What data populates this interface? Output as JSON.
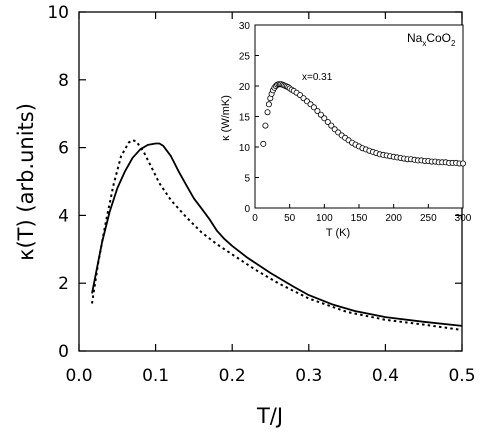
{
  "chart_data": [
    {
      "type": "line",
      "xlabel": "T/J",
      "ylabel": "κ(T) (arb.units)",
      "xlim": [
        0.0,
        0.5
      ],
      "ylim": [
        0,
        10
      ],
      "xticks": [
        0.0,
        0.1,
        0.2,
        0.3,
        0.4,
        0.5
      ],
      "xtick_labels": [
        "0.0",
        "0.1",
        "0.2",
        "0.3",
        "0.4",
        "0.5"
      ],
      "yticks": [
        0,
        2,
        4,
        6,
        8,
        10
      ],
      "ytick_labels": [
        "0",
        "2",
        "4",
        "6",
        "8",
        "10"
      ],
      "series": [
        {
          "style": "solid",
          "x": [
            0.017,
            0.03,
            0.04,
            0.05,
            0.06,
            0.07,
            0.08,
            0.09,
            0.1,
            0.105,
            0.11,
            0.12,
            0.13,
            0.14,
            0.15,
            0.16,
            0.17,
            0.18,
            0.19,
            0.2,
            0.22,
            0.25,
            0.28,
            0.3,
            0.33,
            0.36,
            0.4,
            0.45,
            0.5
          ],
          "y": [
            1.7,
            3.2,
            4.1,
            4.8,
            5.3,
            5.7,
            5.95,
            6.08,
            6.12,
            6.12,
            6.05,
            5.75,
            5.3,
            4.9,
            4.5,
            4.2,
            3.9,
            3.55,
            3.3,
            3.1,
            2.75,
            2.3,
            1.9,
            1.65,
            1.38,
            1.18,
            1.0,
            0.86,
            0.74
          ]
        },
        {
          "style": "dotted",
          "x": [
            0.017,
            0.025,
            0.035,
            0.045,
            0.055,
            0.065,
            0.07,
            0.075,
            0.085,
            0.095,
            0.105,
            0.12,
            0.14,
            0.16,
            0.18,
            0.2,
            0.23,
            0.26,
            0.3,
            0.35,
            0.4,
            0.45,
            0.5
          ],
          "y": [
            1.4,
            2.6,
            3.8,
            4.9,
            5.75,
            6.15,
            6.22,
            6.18,
            5.85,
            5.4,
            4.95,
            4.45,
            3.95,
            3.5,
            3.15,
            2.85,
            2.4,
            2.0,
            1.55,
            1.15,
            0.92,
            0.78,
            0.62
          ]
        }
      ]
    },
    {
      "type": "scatter",
      "xlabel": "T (K)",
      "ylabel": "κ (W/mK)",
      "xlim": [
        0,
        300
      ],
      "ylim": [
        0,
        30
      ],
      "xticks": [
        0,
        50,
        100,
        150,
        200,
        250,
        300
      ],
      "xtick_labels": [
        "0",
        "50",
        "100",
        "150",
        "200",
        "250",
        "300"
      ],
      "yticks": [
        0,
        5,
        10,
        15,
        20,
        25,
        30
      ],
      "ytick_labels": [
        "0",
        "5",
        "10",
        "15",
        "20",
        "25",
        "30"
      ],
      "legend": {
        "base": "Na",
        "sub_x": "x",
        "mid": "CoO",
        "sub_2": "2"
      },
      "annotation": "x=0.31",
      "marker": "open-circle",
      "series": [
        {
          "x": [
            12,
            15,
            18,
            20,
            22,
            24,
            26,
            28,
            30,
            32,
            34,
            36,
            38,
            40,
            42,
            44,
            46,
            48,
            50,
            53,
            56,
            60,
            65,
            70,
            75,
            80,
            85,
            90,
            95,
            100,
            105,
            110,
            115,
            120,
            125,
            130,
            135,
            140,
            145,
            150,
            155,
            160,
            165,
            170,
            175,
            180,
            185,
            190,
            195,
            200,
            205,
            210,
            215,
            220,
            225,
            230,
            235,
            240,
            245,
            250,
            255,
            260,
            265,
            270,
            275,
            280,
            285,
            290,
            295,
            300
          ],
          "y": [
            10.5,
            13.5,
            15.7,
            17.0,
            18.0,
            18.7,
            19.3,
            19.7,
            20.0,
            20.2,
            20.3,
            20.3,
            20.3,
            20.2,
            20.1,
            20.0,
            19.9,
            19.8,
            19.6,
            19.4,
            19.2,
            18.9,
            18.5,
            18.0,
            17.5,
            17.0,
            16.5,
            15.9,
            15.3,
            14.7,
            14.1,
            13.5,
            12.9,
            12.4,
            11.9,
            11.5,
            11.1,
            10.7,
            10.4,
            10.1,
            9.8,
            9.6,
            9.4,
            9.2,
            9.0,
            8.8,
            8.7,
            8.6,
            8.5,
            8.4,
            8.3,
            8.2,
            8.1,
            8.0,
            8.0,
            7.9,
            7.8,
            7.8,
            7.7,
            7.7,
            7.6,
            7.6,
            7.5,
            7.5,
            7.5,
            7.4,
            7.4,
            7.4,
            7.3,
            7.3
          ]
        }
      ]
    }
  ]
}
